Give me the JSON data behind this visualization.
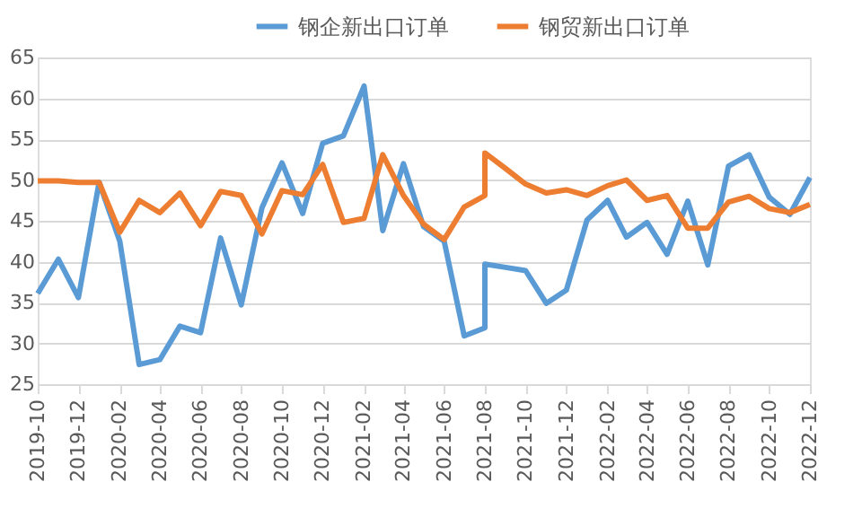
{
  "chart_data": {
    "type": "line",
    "x": [
      "2019-10",
      "2019-11",
      "2019-12",
      "2020-01",
      "2020-02",
      "2020-03",
      "2020-04",
      "2020-05",
      "2020-06",
      "2020-07",
      "2020-08",
      "2020-09",
      "2020-10",
      "2020-11",
      "2020-12",
      "2021-01",
      "2021-02",
      "2021-03",
      "2021-04",
      "2021-05",
      "2021-06",
      "2021-07",
      "2021-08",
      "2021-08",
      "2021-09",
      "2021-10",
      "2021-11",
      "2021-12",
      "2022-01",
      "2022-02",
      "2022-03",
      "2022-04",
      "2022-05",
      "2022-06",
      "2022-07",
      "2022-08",
      "2022-09",
      "2022-10",
      "2022-11",
      "2022-12"
    ],
    "series": [
      {
        "name": "钢企新出口订单",
        "color": "#5b9bd5",
        "values": [
          36.1,
          40.3,
          35.6,
          49.7,
          42.5,
          27.4,
          28.0,
          32.1,
          31.3,
          42.9,
          34.7,
          46.6,
          52.1,
          45.9,
          54.5,
          55.4,
          61.5,
          43.8,
          52.0,
          44.3,
          42.5,
          30.9,
          31.9,
          39.7,
          39.3,
          38.9,
          34.9,
          36.5,
          45.1,
          47.5,
          43.0,
          44.8,
          40.9,
          47.4,
          39.6,
          51.7,
          53.1,
          47.9,
          45.8,
          50.3
        ]
      },
      {
        "name": "钢贸新出口订单",
        "color": "#ed7d31",
        "values": [
          49.9,
          49.9,
          49.7,
          49.7,
          43.6,
          47.5,
          46.0,
          48.4,
          44.4,
          48.6,
          48.1,
          43.4,
          48.7,
          48.2,
          51.9,
          44.8,
          45.3,
          53.1,
          48.1,
          44.6,
          42.7,
          46.7,
          48.1,
          53.3,
          51.4,
          49.5,
          48.4,
          48.8,
          48.1,
          49.3,
          50.0,
          47.5,
          48.1,
          44.1,
          44.1,
          47.3,
          48.0,
          46.5,
          46.0,
          47.0
        ]
      }
    ],
    "xlim": [
      "2019-10",
      "2022-12"
    ],
    "xticks": [
      "2019-10",
      "2019-12",
      "2020-02",
      "2020-04",
      "2020-06",
      "2020-08",
      "2020-10",
      "2020-12",
      "2021-02",
      "2021-04",
      "2021-06",
      "2021-08",
      "2021-10",
      "2021-12",
      "2022-02",
      "2022-04",
      "2022-06",
      "2022-08",
      "2022-10",
      "2022-12"
    ],
    "ylim": [
      25,
      65
    ],
    "yticks": [
      25,
      30,
      35,
      40,
      45,
      50,
      55,
      60,
      65
    ],
    "grid": "y",
    "legend": "top",
    "marker": "none",
    "line_style": "solid"
  }
}
